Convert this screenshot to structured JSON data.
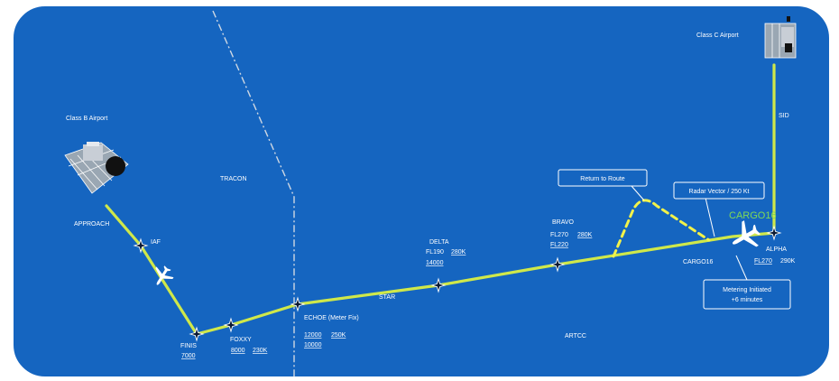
{
  "colors": {
    "background": "#1565c0",
    "frame": "#ffffff",
    "route": "#cfe84a",
    "vector": "#f2f24a",
    "boundary": "#cfd8e3",
    "callsign_highlight": "#7ed957",
    "text": "#ffffff"
  },
  "airports": {
    "class_b": "Class B Airport",
    "class_c": "Class C Airport"
  },
  "airspace": {
    "tracon": "TRACON",
    "artcc": "ARTCC"
  },
  "segments": {
    "approach": "APPROACH",
    "star": "STAR",
    "sid": "SID"
  },
  "waypoints": {
    "iaf": {
      "name": "IAF"
    },
    "finis": {
      "name": "FINIS",
      "line1": "7000"
    },
    "foxxy": {
      "name": "FOXXY",
      "line1_a": "8000",
      "line1_b": "230K"
    },
    "echoe": {
      "name": "ECHOE (Meter Fix)",
      "line1_a": "12000",
      "line1_b": "250K",
      "line2": "10000"
    },
    "delta": {
      "name": "DELTA",
      "line1_a": "FL190",
      "line1_b": "280K",
      "line2": "14000"
    },
    "bravo": {
      "name": "BRAVO",
      "line1_a": "FL270",
      "line1_b": "280K",
      "line2": "FL220"
    },
    "alpha": {
      "name": "ALPHA",
      "line1_a": "FL270",
      "line1_b": "290K"
    }
  },
  "callouts": {
    "return_to_route": "Return to Route",
    "radar_vector": "Radar Vector / 250 Kt",
    "metering_line1": "Metering Initiated",
    "metering_line2": "+6 minutes"
  },
  "aircraft": {
    "callsign_highlight": "CARGO16",
    "callsign_label": "CARGO16"
  },
  "icons": {
    "waypoint": "waypoint-star-icon",
    "aircraft": "airplane-icon",
    "airport": "airport-icon"
  }
}
